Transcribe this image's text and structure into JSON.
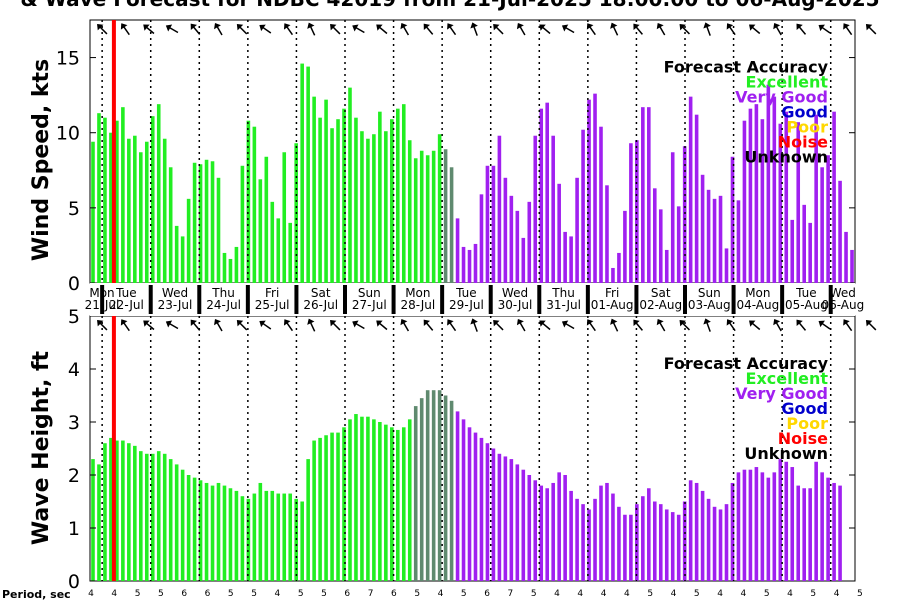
{
  "title": "& Wave Forecast for NDBC 42019 from 21-Jul-2025 18:00:00 to 06-Aug-2025",
  "colors": {
    "Excellent": "#22ee22",
    "Very Good": "#a020f0",
    "Good": "#0000cc",
    "Poor": "#ffd700",
    "Noise": "#ff0000",
    "Unknown": "#000000",
    "Transition": "#5f8a6f",
    "NowLine": "#ff0000"
  },
  "legend": {
    "title": "Forecast Accuracy",
    "items": [
      "Excellent",
      "Very Good",
      "Good",
      "Poor",
      "Noise",
      "Unknown"
    ]
  },
  "days": [
    {
      "day": "Mon",
      "date": "21-Jul"
    },
    {
      "day": "Tue",
      "date": "22-Jul"
    },
    {
      "day": "Wed",
      "date": "23-Jul"
    },
    {
      "day": "Thu",
      "date": "24-Jul"
    },
    {
      "day": "Fri",
      "date": "25-Jul"
    },
    {
      "day": "Sat",
      "date": "26-Jul"
    },
    {
      "day": "Sun",
      "date": "27-Jul"
    },
    {
      "day": "Mon",
      "date": "28-Jul"
    },
    {
      "day": "Tue",
      "date": "29-Jul"
    },
    {
      "day": "Wed",
      "date": "30-Jul"
    },
    {
      "day": "Thu",
      "date": "31-Jul"
    },
    {
      "day": "Fri",
      "date": "01-Aug"
    },
    {
      "day": "Sat",
      "date": "02-Aug"
    },
    {
      "day": "Sun",
      "date": "03-Aug"
    },
    {
      "day": "Mon",
      "date": "04-Aug"
    },
    {
      "day": "Tue",
      "date": "05-Aug"
    },
    {
      "day": "Wed",
      "date": "06-Aug"
    }
  ],
  "period": {
    "label": "Period, sec",
    "values": [
      "4",
      "4",
      "5",
      "5",
      "6",
      "6",
      "5",
      "5",
      "4",
      "5",
      "5",
      "6",
      "7",
      "6",
      "5",
      "4",
      "5",
      "6",
      "7",
      "5",
      "4",
      "4",
      "4",
      "4",
      "5",
      "4",
      "5",
      "4",
      "4",
      "5",
      "4",
      "5",
      "4",
      "5"
    ]
  },
  "chart_data": [
    {
      "type": "bar",
      "ylabel": "Wind Speed, kts",
      "ylim": [
        0,
        17.5
      ],
      "yticks": [
        0,
        5,
        10,
        15
      ],
      "time_step_hours": 3,
      "values": [
        9.4,
        11.3,
        11.0,
        10.0,
        10.8,
        11.7,
        9.6,
        9.8,
        8.7,
        9.4,
        11.1,
        11.9,
        9.6,
        7.7,
        3.8,
        3.1,
        5.6,
        8.0,
        7.9,
        8.2,
        8.1,
        7.0,
        2.0,
        1.6,
        2.4,
        7.8,
        10.8,
        10.4,
        6.9,
        8.4,
        5.4,
        4.3,
        8.7,
        4.0,
        9.3,
        14.6,
        14.4,
        12.4,
        11.0,
        12.2,
        10.3,
        10.9,
        11.6,
        13.0,
        11.0,
        10.1,
        9.6,
        9.9,
        11.4,
        10.1,
        10.9,
        11.6,
        11.9,
        9.5,
        8.3,
        8.8,
        8.5,
        8.8,
        9.9,
        8.9,
        7.7,
        4.3,
        2.4,
        2.2,
        2.6,
        5.9,
        7.8,
        7.8,
        9.8,
        7.0,
        5.8,
        4.8,
        3.0,
        5.4,
        9.8,
        11.6,
        12.0,
        9.8,
        6.6,
        3.4,
        3.1,
        7.0,
        10.2,
        12.2,
        12.6,
        10.4,
        6.5,
        1.0,
        2.0,
        4.8,
        9.3,
        9.5,
        11.7,
        11.7,
        6.3,
        4.9,
        2.2,
        8.7,
        5.1,
        9.1,
        12.4,
        11.2,
        7.2,
        6.2,
        5.6,
        5.8,
        2.3,
        8.4,
        5.5,
        10.8,
        11.6,
        11.9,
        10.9,
        13.2,
        12.4,
        10.6,
        11.4,
        4.2,
        10.7,
        5.2,
        4.0,
        11.2,
        7.7,
        8.5,
        11.4,
        6.8,
        3.4,
        2.2
      ],
      "categories_color": "Excellent for steps 0-58, Transition 59-60, Very Good from step 61"
    },
    {
      "type": "bar",
      "ylabel": "Wave Height, ft",
      "ylim": [
        0,
        5
      ],
      "yticks": [
        0,
        1,
        2,
        3,
        4,
        5
      ],
      "time_step_hours": 3,
      "values": [
        2.3,
        2.2,
        2.6,
        2.7,
        2.65,
        2.65,
        2.6,
        2.55,
        2.45,
        2.4,
        2.4,
        2.45,
        2.4,
        2.3,
        2.2,
        2.1,
        2.0,
        1.95,
        1.9,
        1.85,
        1.8,
        1.85,
        1.8,
        1.75,
        1.7,
        1.6,
        1.55,
        1.65,
        1.85,
        1.7,
        1.7,
        1.65,
        1.65,
        1.65,
        1.55,
        1.5,
        2.3,
        2.65,
        2.7,
        2.75,
        2.8,
        2.8,
        2.9,
        3.05,
        3.15,
        3.1,
        3.1,
        3.05,
        3.0,
        2.95,
        2.9,
        2.85,
        2.9,
        3.05,
        3.3,
        3.45,
        3.6,
        3.6,
        3.6,
        3.5,
        3.4,
        3.2,
        3.05,
        2.9,
        2.8,
        2.7,
        2.6,
        2.5,
        2.4,
        2.35,
        2.3,
        2.2,
        2.1,
        2.0,
        1.9,
        1.8,
        1.75,
        1.85,
        2.05,
        2.0,
        1.7,
        1.55,
        1.45,
        1.35,
        1.55,
        1.8,
        1.85,
        1.65,
        1.4,
        1.25,
        1.25,
        1.45,
        1.6,
        1.75,
        1.5,
        1.45,
        1.35,
        1.3,
        1.25,
        1.5,
        1.9,
        1.85,
        1.7,
        1.55,
        1.4,
        1.35,
        1.45,
        1.85,
        2.05,
        2.1,
        2.1,
        2.15,
        2.05,
        1.95,
        2.05,
        2.3,
        2.25,
        2.15,
        1.8,
        1.75,
        1.75,
        2.25,
        2.05,
        1.95,
        1.85,
        1.8
      ]
    }
  ]
}
